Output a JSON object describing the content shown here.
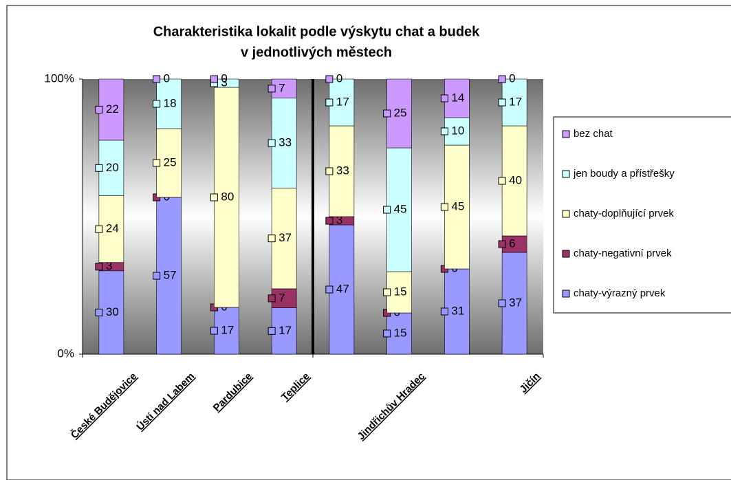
{
  "chart_data": {
    "type": "bar",
    "stacked": "percent",
    "title": "Charakteristika lokalit podle výskytu chat a budek",
    "subtitle": "v jednotlivých městech",
    "categories": [
      "České Budějovice",
      "Ústí nad Labem",
      "Pardubice",
      "Teplice",
      null,
      "Jindřichův Hradec",
      null,
      "Jičín"
    ],
    "series": [
      {
        "name": "chaty-výrazný prvek",
        "color": "#9999ff",
        "values": [
          30,
          57,
          17,
          17,
          47,
          15,
          31,
          37
        ]
      },
      {
        "name": "chaty-negativní prvek",
        "color": "#993366",
        "values": [
          3,
          0,
          0,
          7,
          3,
          0,
          0,
          6
        ]
      },
      {
        "name": "chaty-doplňující prvek",
        "color": "#ffffcc",
        "values": [
          24,
          25,
          80,
          37,
          33,
          15,
          45,
          40
        ]
      },
      {
        "name": "jen boudy a přístřešky",
        "color": "#ccffff",
        "values": [
          20,
          18,
          3,
          33,
          17,
          45,
          10,
          17
        ]
      },
      {
        "name": "bez chat",
        "color": "#cc99ff",
        "values": [
          22,
          0,
          0,
          7,
          0,
          25,
          14,
          0
        ]
      }
    ],
    "ylim": [
      0,
      100
    ],
    "yticks": [
      {
        "value": 0,
        "label": "0%"
      },
      {
        "value": 100,
        "label": "100%"
      }
    ],
    "legend": "right"
  }
}
